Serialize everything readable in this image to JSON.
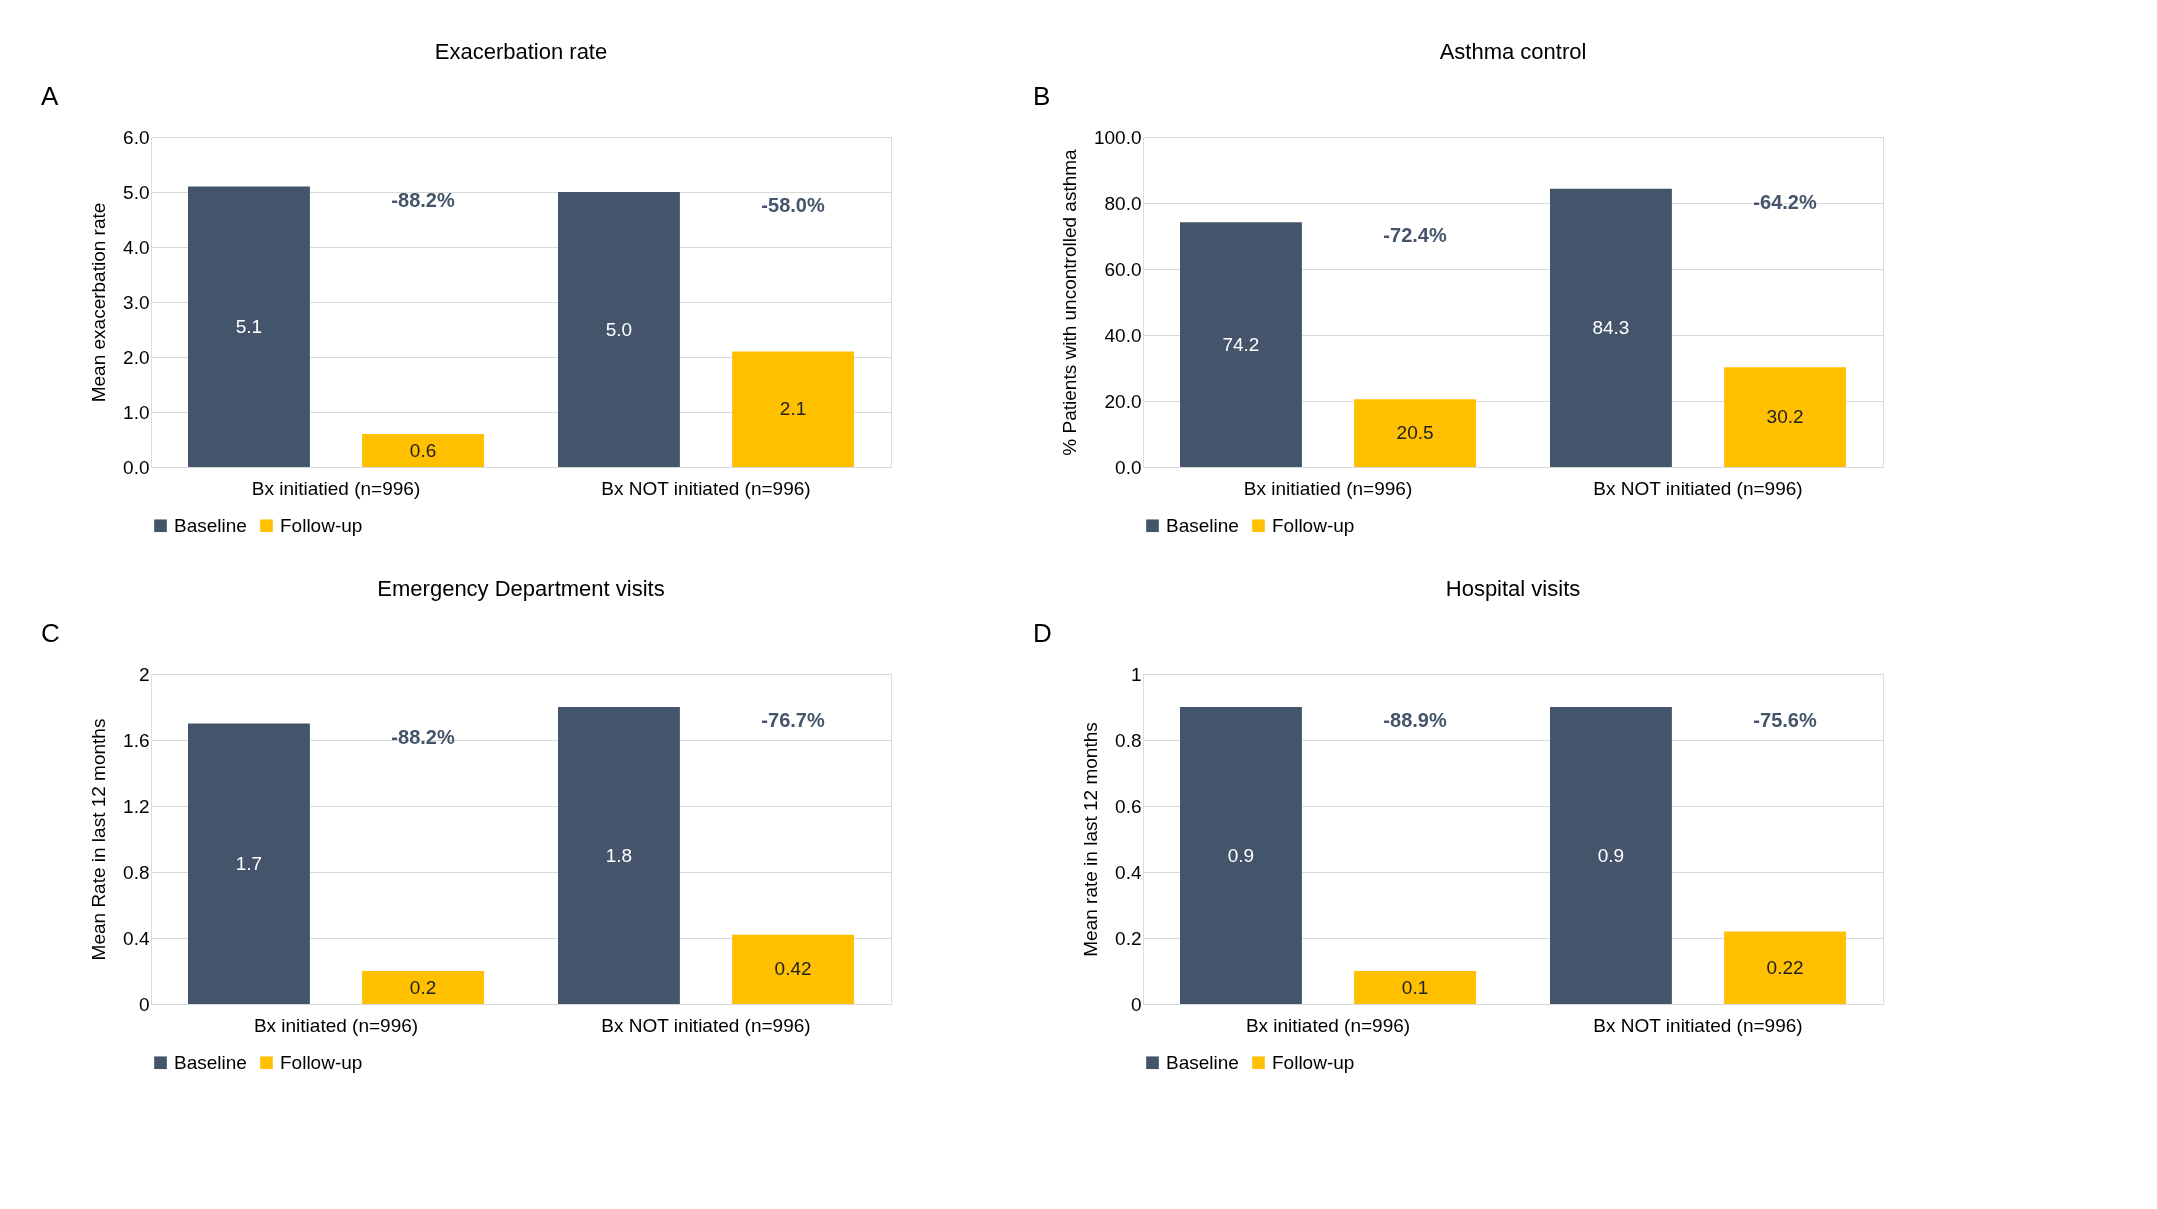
{
  "chart_data": [
    {
      "type": "bar",
      "title": "Exacerbation rate",
      "ylabel": "Mean exacerbation rate",
      "categories": [
        "Bx initiatied (n=996)",
        "Bx NOT initiated (n=996)"
      ],
      "series": [
        {
          "name": "Baseline",
          "color": "#44546a",
          "values": [
            5.1,
            5.0
          ],
          "value_labels": [
            "5.1",
            "5.0"
          ]
        },
        {
          "name": "Follow-up",
          "color": "#ffc000",
          "values": [
            0.6,
            2.1
          ],
          "value_labels": [
            "0.6",
            "2.1"
          ]
        }
      ],
      "ylim": [
        0,
        6
      ],
      "yticks": [
        {
          "value": 0,
          "label": "0.0"
        },
        {
          "value": 1,
          "label": "1.0"
        },
        {
          "value": 2,
          "label": "2.0"
        },
        {
          "value": 3,
          "label": "3.0"
        },
        {
          "value": 4,
          "label": "4.0"
        },
        {
          "value": 5,
          "label": "5.0"
        },
        {
          "value": 6,
          "label": "6.0"
        }
      ],
      "grid": "y",
      "legend": "bottom",
      "annotations": [
        "A",
        "-88.2%",
        "-58.0%"
      ]
    },
    {
      "type": "bar",
      "title": "Asthma control",
      "ylabel": "% Patients with uncontrolled asthma",
      "categories": [
        "Bx initiatied (n=996)",
        "Bx NOT initiated (n=996)"
      ],
      "series": [
        {
          "name": "Baseline",
          "color": "#44546a",
          "values": [
            74.2,
            84.3
          ],
          "value_labels": [
            "74.2",
            "84.3"
          ]
        },
        {
          "name": "Follow-up",
          "color": "#ffc000",
          "values": [
            20.5,
            30.2
          ],
          "value_labels": [
            "20.5",
            "30.2"
          ]
        }
      ],
      "ylim": [
        0,
        100
      ],
      "yticks": [
        {
          "value": 0,
          "label": "0.0"
        },
        {
          "value": 20,
          "label": "20.0"
        },
        {
          "value": 40,
          "label": "40.0"
        },
        {
          "value": 60,
          "label": "60.0"
        },
        {
          "value": 80,
          "label": "80.0"
        },
        {
          "value": 100,
          "label": "100.0"
        }
      ],
      "grid": "y",
      "legend": "bottom",
      "annotations": [
        "B",
        "-72.4%",
        "-64.2%"
      ]
    },
    {
      "type": "bar",
      "title": "Emergency Department visits",
      "ylabel": "Mean Rate in last 12 months",
      "categories": [
        "Bx initiated (n=996)",
        "Bx NOT initiated (n=996)"
      ],
      "series": [
        {
          "name": "Baseline",
          "color": "#44546a",
          "values": [
            1.7,
            1.8
          ],
          "value_labels": [
            "1.7",
            "1.8"
          ]
        },
        {
          "name": "Follow-up",
          "color": "#ffc000",
          "values": [
            0.2,
            0.42
          ],
          "value_labels": [
            "0.2",
            "0.42"
          ]
        }
      ],
      "ylim": [
        0,
        2
      ],
      "yticks": [
        0,
        0.4,
        0.8,
        1.2,
        1.6,
        2
      ],
      "grid": "y",
      "legend": "bottom",
      "annotations": [
        "C",
        "-88.2%",
        "-76.7%"
      ]
    },
    {
      "type": "bar",
      "title": "Hospital visits",
      "ylabel": "Mean rate in last 12 months",
      "categories": [
        "Bx initiated (n=996)",
        "Bx NOT initiated (n=996)"
      ],
      "series": [
        {
          "name": "Baseline",
          "color": "#44546a",
          "values": [
            0.9,
            0.9
          ],
          "value_labels": [
            "0.9",
            "0.9"
          ]
        },
        {
          "name": "Follow-up",
          "color": "#ffc000",
          "values": [
            0.1,
            0.22
          ],
          "value_labels": [
            "0.1",
            "0.22"
          ]
        }
      ],
      "ylim": [
        0,
        1
      ],
      "yticks": [
        0,
        0.2,
        0.4,
        0.6,
        0.8,
        1
      ],
      "grid": "y",
      "legend": "bottom",
      "annotations": [
        "D",
        "-88.9%",
        "-75.6%"
      ]
    }
  ]
}
